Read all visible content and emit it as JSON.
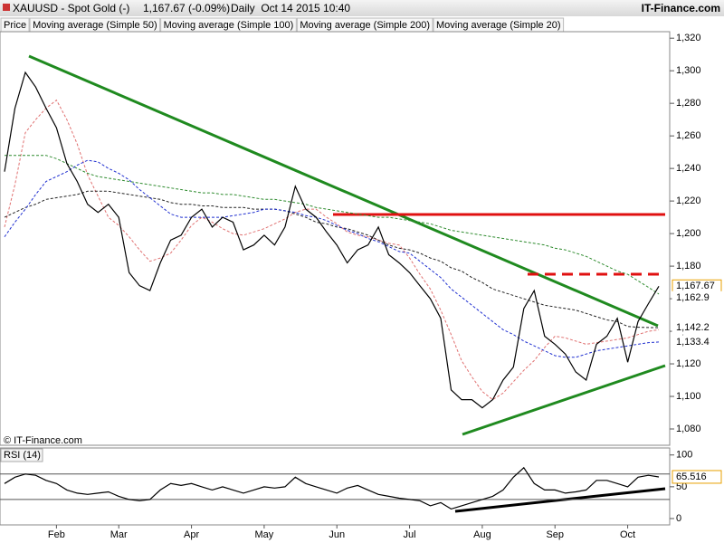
{
  "chart_data": [
    {
      "type": "line",
      "title": "XAUUSD - Spot Gold (-)",
      "quote": "1,167.67 (-0.09%)",
      "period": "Daily  Oct 14 2015 10:40",
      "source": "IT-Finance.com",
      "copyright": "© IT-Finance.com",
      "categories": [
        null,
        null,
        null,
        null,
        null,
        "Feb",
        null,
        null,
        null,
        null,
        null,
        "Mar",
        null,
        null,
        null,
        null,
        null,
        null,
        "Apr",
        null,
        null,
        null,
        null,
        null,
        null,
        "May",
        null,
        null,
        null,
        null,
        null,
        null,
        "Jun",
        null,
        null,
        null,
        null,
        null,
        null,
        "Jul",
        null,
        null,
        null,
        null,
        null,
        null,
        "Aug",
        null,
        null,
        null,
        null,
        null,
        null,
        "Sep",
        null,
        null,
        null,
        null,
        null,
        null,
        "Oct",
        null,
        null,
        null
      ],
      "series": [
        {
          "name": "Price",
          "color": "#000000",
          "dashed": false,
          "last_label": "1,167.67",
          "values": [
            1238,
            1277,
            1299,
            1290,
            1277,
            1265,
            1243,
            1232,
            1218,
            1213,
            1218,
            1210,
            1176,
            1168,
            1165,
            1182,
            1196,
            1199,
            1210,
            1215,
            1204,
            1210,
            1207,
            1190,
            1193,
            1199,
            1193,
            1204,
            1229,
            1215,
            1210,
            1201,
            1193,
            1182,
            1190,
            1193,
            1204,
            1187,
            1182,
            1176,
            1168,
            1160,
            1148,
            1104,
            1098,
            1098,
            1093,
            1098,
            1110,
            1118,
            1154,
            1165,
            1137,
            1132,
            1126,
            1115,
            1110,
            1132,
            1137,
            1148,
            1121,
            1146,
            1157,
            1167.67
          ]
        },
        {
          "name": "Moving average (Simple 50)",
          "color": "#1f2fd0",
          "dashed": true,
          "last_label": "1,133.4",
          "values": [
            1198,
            1207,
            1215,
            1224,
            1232,
            1235,
            1238,
            1242,
            1245,
            1244,
            1240,
            1237,
            1233,
            1227,
            1222,
            1217,
            1212,
            1210,
            1210,
            1210,
            1210,
            1210,
            1211,
            1212,
            1213,
            1215,
            1215,
            1214,
            1213,
            1211,
            1210,
            1208,
            1205,
            1202,
            1200,
            1197,
            1195,
            1192,
            1189,
            1188,
            1183,
            1178,
            1173,
            1166,
            1161,
            1156,
            1151,
            1146,
            1141,
            1138,
            1134,
            1131,
            1128,
            1125,
            1124,
            1124,
            1126,
            1128,
            1129,
            1130,
            1131,
            1132,
            1133,
            1133.4
          ]
        },
        {
          "name": "Moving average (Simple 100)",
          "color": "#222222",
          "dashed": true,
          "last_label": "1,142.2",
          "values": [
            1210,
            1213,
            1216,
            1218,
            1221,
            1222,
            1223,
            1224,
            1226,
            1226,
            1226,
            1225,
            1224,
            1223,
            1222,
            1221,
            1219,
            1218,
            1218,
            1217,
            1217,
            1216,
            1216,
            1216,
            1215,
            1215,
            1215,
            1214,
            1212,
            1210,
            1207,
            1206,
            1204,
            1203,
            1201,
            1199,
            1196,
            1193,
            1191,
            1190,
            1188,
            1185,
            1183,
            1179,
            1177,
            1173,
            1170,
            1166,
            1164,
            1162,
            1160,
            1158,
            1156,
            1155,
            1154,
            1153,
            1151,
            1149,
            1147,
            1146,
            1143,
            1142.5,
            1142.3,
            1142.2
          ]
        },
        {
          "name": "Moving average (Simple 200)",
          "color": "#2e8b2e",
          "dashed": true,
          "last_label": "1,162.9",
          "values": [
            1248,
            1248,
            1248,
            1248,
            1248,
            1246,
            1243,
            1240,
            1237,
            1235,
            1234,
            1233,
            1232,
            1231,
            1230,
            1229,
            1228,
            1227,
            1226,
            1225,
            1225,
            1224,
            1224,
            1223,
            1222,
            1221,
            1221,
            1220,
            1219,
            1218,
            1216,
            1215,
            1214,
            1213,
            1212,
            1211,
            1210,
            1210,
            1209,
            1208,
            1207,
            1206,
            1204,
            1202,
            1201,
            1200,
            1199,
            1198,
            1197,
            1196,
            1195,
            1194,
            1193,
            1191,
            1190,
            1188,
            1186,
            1183,
            1180,
            1177,
            1175,
            1171,
            1167,
            1162.9
          ]
        },
        {
          "name": "Moving average (Simple 20)",
          "color": "#e07070",
          "dashed": true,
          "values": [
            1204,
            1230,
            1262,
            1270,
            1277,
            1282,
            1270,
            1255,
            1236,
            1223,
            1210,
            1205,
            1198,
            1190,
            1183,
            1185,
            1188,
            1196,
            1205,
            1210,
            1207,
            1203,
            1200,
            1199,
            1201,
            1203,
            1206,
            1209,
            1213,
            1215,
            1215,
            1210,
            1206,
            1201,
            1199,
            1198,
            1196,
            1194,
            1193,
            1185,
            1175,
            1166,
            1153,
            1138,
            1122,
            1112,
            1103,
            1098,
            1102,
            1109,
            1116,
            1122,
            1130,
            1137,
            1136,
            1134,
            1132,
            1133,
            1134,
            1135,
            1136,
            1138,
            1140,
            1141
          ]
        }
      ],
      "ylim": [
        1070,
        1324
      ],
      "yticks": [
        {
          "value": 1080,
          "label": "1,080"
        },
        {
          "value": 1100,
          "label": "1,100"
        },
        {
          "value": 1120,
          "label": "1,120"
        },
        {
          "value": 1140,
          "label": "1,140"
        },
        {
          "value": 1160,
          "label": "1,160"
        },
        {
          "value": 1180,
          "label": "1,180"
        },
        {
          "value": 1200,
          "label": "1,200"
        },
        {
          "value": 1220,
          "label": "1,220"
        },
        {
          "value": 1240,
          "label": "1,240"
        },
        {
          "value": 1260,
          "label": "1,260"
        },
        {
          "value": 1280,
          "label": "1,280"
        },
        {
          "value": 1300,
          "label": "1,300"
        },
        {
          "value": 1320,
          "label": "1,320"
        }
      ],
      "grid": false
    },
    {
      "type": "line",
      "series": [
        {
          "name": "RSI (14)",
          "color": "#000000",
          "dashed": false,
          "last_label": "65.516",
          "values": [
            55,
            65,
            70,
            68,
            60,
            55,
            45,
            40,
            38,
            40,
            42,
            35,
            30,
            28,
            30,
            45,
            55,
            52,
            55,
            50,
            45,
            50,
            45,
            40,
            45,
            50,
            48,
            50,
            65,
            55,
            50,
            45,
            40,
            48,
            52,
            45,
            38,
            35,
            32,
            30,
            28,
            20,
            25,
            15,
            20,
            25,
            30,
            35,
            45,
            65,
            80,
            55,
            45,
            45,
            40,
            42,
            45,
            60,
            60,
            55,
            50,
            65,
            68,
            65.516
          ]
        }
      ],
      "levels": [
        30,
        70
      ],
      "ylim": [
        -10,
        111
      ],
      "yticks": [
        0,
        50,
        100
      ],
      "grid": false
    }
  ]
}
